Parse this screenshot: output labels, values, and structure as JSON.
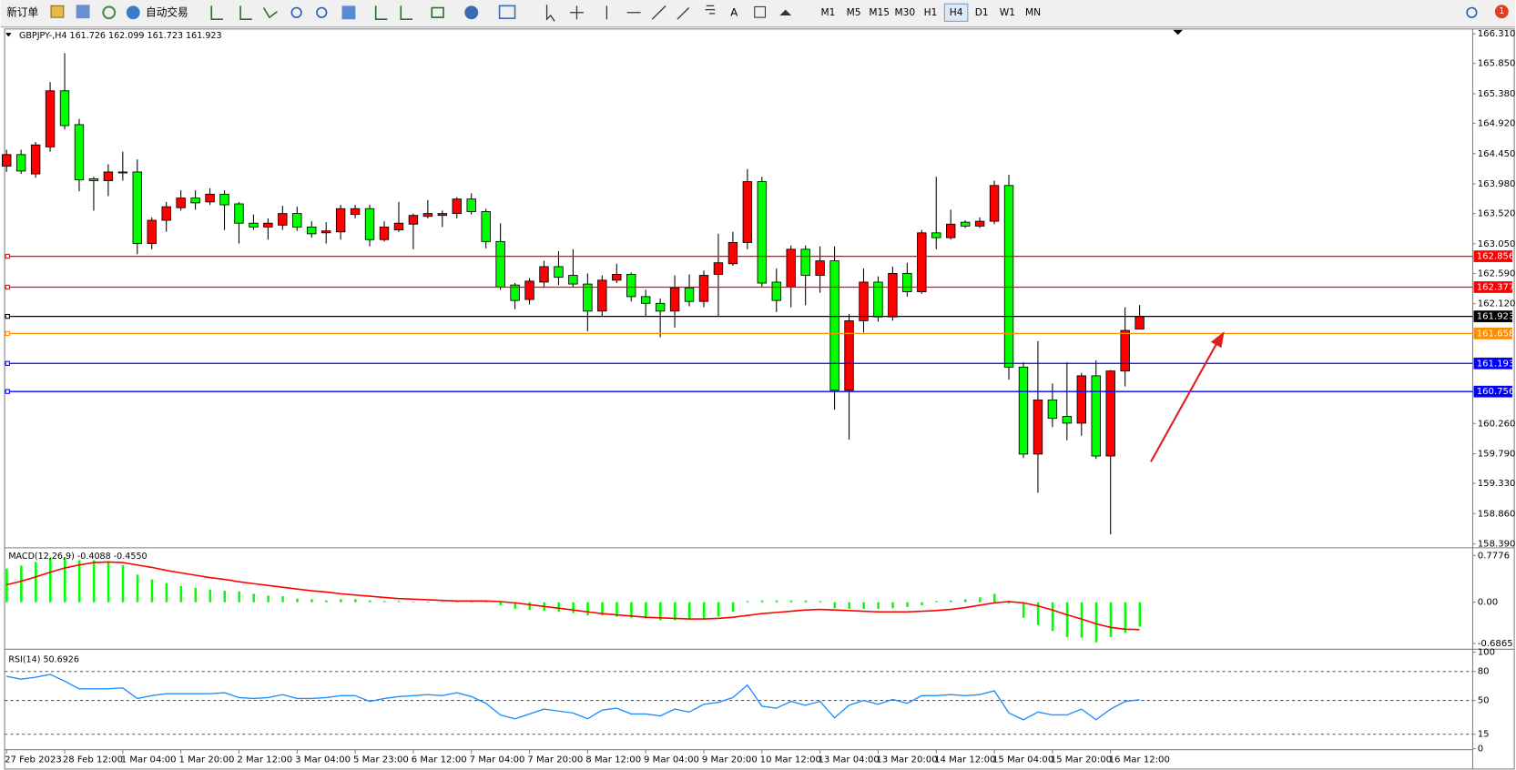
{
  "toolbar": {
    "new_order": "新订单",
    "auto_trading": "自动交易",
    "timeframes": [
      "M1",
      "M5",
      "M15",
      "M30",
      "H1",
      "H4",
      "D1",
      "W1",
      "MN"
    ],
    "active_timeframe": "H4",
    "notification_count": 1
  },
  "chart_data": [
    {
      "type": "candlestick",
      "title": "GBPJPY-,H4  161.726 162.099 161.723 161.923",
      "categories": [
        "27 Feb 2023",
        null,
        null,
        null,
        "28 Feb 12:00",
        null,
        null,
        null,
        "1 Mar 04:00",
        null,
        null,
        null,
        "1 Mar 20:00",
        null,
        null,
        null,
        "2 Mar 12:00",
        null,
        null,
        null,
        "3 Mar 04:00",
        null,
        null,
        null,
        "5 Mar 23:00",
        null,
        null,
        null,
        "6 Mar 12:00",
        null,
        null,
        null,
        "7 Mar 04:00",
        null,
        null,
        null,
        "7 Mar 20:00",
        null,
        null,
        null,
        "8 Mar 12:00",
        null,
        null,
        null,
        "9 Mar 04:00",
        null,
        null,
        null,
        "9 Mar 20:00",
        null,
        null,
        null,
        "10 Mar 12:00",
        null,
        null,
        null,
        "13 Mar 04:00",
        null,
        null,
        null,
        "13 Mar 20:00",
        null,
        null,
        null,
        "14 Mar 12:00",
        null,
        null,
        null,
        "15 Mar 04:00",
        null,
        null,
        null,
        "15 Mar 20:00",
        null,
        null,
        null,
        "16 Mar 12:00",
        null,
        null
      ],
      "open": [
        164.255,
        164.435,
        164.135,
        164.555,
        165.425,
        164.9,
        164.06,
        164.03,
        164.165,
        164.165,
        163.055,
        163.415,
        163.61,
        163.76,
        163.7,
        163.82,
        163.67,
        163.37,
        163.31,
        163.34,
        163.52,
        163.31,
        163.22,
        163.235,
        163.505,
        163.595,
        163.115,
        163.265,
        163.355,
        163.475,
        163.49,
        163.52,
        163.745,
        163.55,
        163.085,
        162.41,
        162.185,
        162.455,
        162.695,
        162.56,
        162.425,
        162.005,
        162.485,
        162.575,
        162.23,
        162.125,
        162.005,
        162.365,
        162.155,
        162.575,
        162.74,
        163.07,
        164.015,
        162.455,
        162.38,
        162.965,
        162.56,
        162.785,
        160.775,
        161.855,
        162.455,
        161.915,
        162.59,
        162.305,
        163.22,
        163.145,
        163.385,
        163.325,
        163.4,
        163.955,
        161.135,
        159.785,
        160.625,
        160.37,
        160.265,
        161.0,
        159.755,
        161.075,
        161.726
      ],
      "high": [
        164.51,
        164.51,
        164.63,
        165.56,
        166.01,
        164.99,
        164.09,
        164.285,
        164.48,
        164.36,
        163.46,
        163.7,
        163.88,
        163.88,
        163.91,
        163.88,
        163.7,
        163.505,
        163.445,
        163.64,
        163.625,
        163.4,
        163.385,
        163.655,
        163.655,
        163.655,
        163.4,
        163.7,
        163.52,
        163.73,
        163.565,
        163.775,
        163.835,
        163.595,
        163.37,
        162.44,
        162.515,
        162.785,
        162.935,
        162.965,
        162.59,
        162.56,
        162.74,
        162.605,
        162.335,
        162.2,
        162.56,
        162.575,
        162.635,
        163.205,
        163.235,
        164.21,
        164.09,
        162.665,
        163.025,
        163.025,
        163.01,
        163.01,
        161.96,
        162.665,
        162.545,
        162.695,
        162.755,
        163.265,
        164.09,
        163.58,
        163.415,
        163.46,
        164.03,
        164.12,
        161.21,
        161.54,
        160.88,
        161.21,
        161.045,
        161.24,
        161.09,
        162.065,
        162.099
      ],
      "low": [
        164.165,
        164.135,
        164.075,
        164.48,
        164.825,
        163.865,
        163.565,
        163.79,
        164.03,
        162.89,
        162.965,
        163.235,
        163.565,
        163.58,
        163.655,
        163.265,
        163.055,
        163.265,
        163.115,
        163.265,
        163.25,
        163.145,
        163.055,
        163.115,
        163.445,
        163.01,
        163.085,
        163.235,
        162.965,
        163.445,
        163.31,
        163.445,
        163.505,
        162.98,
        162.335,
        162.035,
        162.11,
        162.365,
        162.41,
        162.38,
        161.69,
        161.93,
        162.44,
        162.155,
        161.915,
        161.6,
        161.75,
        162.08,
        162.065,
        161.93,
        162.71,
        162.965,
        162.38,
        161.99,
        162.065,
        162.095,
        162.29,
        160.475,
        160.01,
        161.675,
        161.84,
        161.855,
        162.23,
        162.275,
        162.965,
        163.115,
        163.295,
        163.295,
        163.355,
        160.94,
        159.725,
        159.185,
        160.205,
        160.0,
        160.07,
        159.71,
        158.54,
        160.835,
        161.723
      ],
      "close": [
        164.435,
        164.18,
        164.585,
        165.425,
        164.885,
        164.045,
        164.03,
        164.165,
        164.15,
        163.055,
        163.415,
        163.625,
        163.76,
        163.685,
        163.82,
        163.655,
        163.37,
        163.31,
        163.37,
        163.52,
        163.31,
        163.205,
        163.25,
        163.595,
        163.595,
        163.115,
        163.31,
        163.37,
        163.49,
        163.52,
        163.52,
        163.745,
        163.55,
        163.085,
        162.38,
        162.17,
        162.47,
        162.695,
        162.53,
        162.425,
        162.005,
        162.485,
        162.575,
        162.23,
        162.125,
        162.005,
        162.365,
        162.155,
        162.56,
        162.755,
        163.07,
        164.015,
        162.44,
        162.17,
        162.965,
        162.56,
        162.785,
        160.775,
        161.855,
        162.455,
        161.915,
        162.59,
        162.305,
        163.22,
        163.145,
        163.355,
        163.325,
        163.4,
        163.955,
        161.135,
        159.785,
        160.625,
        160.34,
        160.265,
        161.0,
        159.755,
        161.075,
        161.705,
        161.923
      ],
      "up_color": "#ff0000",
      "down_color": "#00ff00",
      "ylim": [
        158.39,
        166.31
      ],
      "yticks": [
        {
          "value": 166.31,
          "label": "166.310"
        },
        {
          "value": 165.85,
          "label": "165.850"
        },
        {
          "value": 165.38,
          "label": "165.380"
        },
        {
          "value": 164.92,
          "label": "164.920"
        },
        {
          "value": 164.45,
          "label": "164.450"
        },
        {
          "value": 163.98,
          "label": "163.980"
        },
        {
          "value": 163.52,
          "label": "163.520"
        },
        {
          "value": 163.05,
          "label": "163.050"
        },
        {
          "value": 162.59,
          "label": "162.590"
        },
        {
          "value": 162.12,
          "label": "162.120"
        },
        {
          "value": 160.26,
          "label": "160.260"
        },
        {
          "value": 159.79,
          "label": "159.790"
        },
        {
          "value": 159.33,
          "label": "159.330"
        },
        {
          "value": 158.86,
          "label": "158.860"
        },
        {
          "value": 158.39,
          "label": "158.390"
        }
      ],
      "price_levels": [
        {
          "value": 162.856,
          "color": "#ff0000"
        },
        {
          "value": 162.377,
          "color": "#ff0000"
        },
        {
          "value": 161.923,
          "color": "#000000"
        },
        {
          "value": 161.658,
          "color": "#ff8c00"
        },
        {
          "value": 161.193,
          "color": "#0000ff"
        },
        {
          "value": 160.756,
          "color": "#0000ff"
        }
      ]
    },
    {
      "type": "macd",
      "title": "MACD(12,26,9) -0.4088 -0.4550",
      "series": [
        {
          "color": "#00ff00",
          "values": [
            0.56,
            0.61,
            0.67,
            0.74,
            0.75,
            0.7,
            0.7,
            0.67,
            0.62,
            0.46,
            0.38,
            0.32,
            0.27,
            0.24,
            0.21,
            0.19,
            0.18,
            0.14,
            0.11,
            0.1,
            0.06,
            0.05,
            0.03,
            0.05,
            0.05,
            0.03,
            0.02,
            0.02,
            0.01,
            0.01,
            0.01,
            0.02,
            0.02,
            0.01,
            -0.05,
            -0.11,
            -0.13,
            -0.14,
            -0.16,
            -0.18,
            -0.22,
            -0.22,
            -0.24,
            -0.26,
            -0.27,
            -0.3,
            -0.3,
            -0.29,
            -0.27,
            -0.24,
            -0.16,
            0.02,
            0.03,
            0.03,
            0.03,
            0.03,
            0.02,
            -0.1,
            -0.11,
            -0.11,
            -0.11,
            -0.1,
            -0.08,
            -0.05,
            0.02,
            0.03,
            0.05,
            0.08,
            0.14,
            -0.02,
            -0.26,
            -0.38,
            -0.48,
            -0.58,
            -0.59,
            -0.67,
            -0.58,
            -0.51,
            -0.4088
          ]
        },
        {
          "color": "#ff0000",
          "values": [
            0.29,
            0.35,
            0.42,
            0.5,
            0.57,
            0.62,
            0.66,
            0.67,
            0.66,
            0.62,
            0.58,
            0.53,
            0.49,
            0.45,
            0.41,
            0.38,
            0.34,
            0.31,
            0.28,
            0.25,
            0.22,
            0.19,
            0.17,
            0.14,
            0.12,
            0.1,
            0.08,
            0.06,
            0.05,
            0.04,
            0.03,
            0.02,
            0.02,
            0.02,
            0.01,
            -0.01,
            -0.04,
            -0.07,
            -0.1,
            -0.13,
            -0.16,
            -0.19,
            -0.21,
            -0.23,
            -0.25,
            -0.26,
            -0.27,
            -0.28,
            -0.28,
            -0.27,
            -0.25,
            -0.22,
            -0.19,
            -0.17,
            -0.15,
            -0.13,
            -0.12,
            -0.13,
            -0.14,
            -0.15,
            -0.16,
            -0.16,
            -0.16,
            -0.15,
            -0.14,
            -0.12,
            -0.09,
            -0.05,
            -0.01,
            0.01,
            -0.01,
            -0.06,
            -0.13,
            -0.21,
            -0.28,
            -0.36,
            -0.42,
            -0.45,
            -0.455
          ]
        }
      ],
      "ylim": [
        -0.6865,
        0.7776
      ],
      "yticks": [
        0.7776,
        {
          "value": 0,
          "label": "0.00"
        },
        -0.6865
      ]
    },
    {
      "type": "line",
      "title": "RSI(14) 50.6926",
      "color": "#1e90ff",
      "values": [
        75,
        72,
        74,
        77,
        70,
        62,
        62,
        62,
        63,
        52,
        55,
        57,
        57,
        57,
        57,
        58,
        53,
        52,
        53,
        56,
        52,
        52,
        53,
        55,
        55,
        49,
        52,
        54,
        55,
        56,
        55,
        58,
        54,
        47,
        35,
        31,
        36,
        41,
        39,
        37,
        31,
        40,
        42,
        36,
        36,
        34,
        41,
        38,
        46,
        48,
        53,
        66,
        44,
        42,
        49,
        45,
        49,
        32,
        45,
        50,
        46,
        51,
        47,
        55,
        55,
        56,
        55,
        56,
        60,
        37,
        30,
        38,
        35,
        35,
        41,
        30,
        41,
        49,
        50.6926
      ],
      "ylim": [
        0,
        100
      ],
      "yticks": [
        100,
        80,
        50,
        15,
        0
      ],
      "grid": "dashed"
    }
  ]
}
